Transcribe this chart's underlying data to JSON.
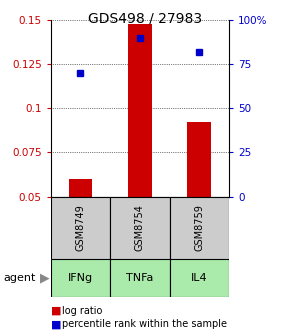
{
  "title": "GDS498 / 27983",
  "samples": [
    "GSM8749",
    "GSM8754",
    "GSM8759"
  ],
  "agents": [
    "IFNg",
    "TNFa",
    "IL4"
  ],
  "log_ratios": [
    0.06,
    0.148,
    0.092
  ],
  "percentile_ranks": [
    0.7,
    0.9,
    0.82
  ],
  "ylim_left": [
    0.05,
    0.15
  ],
  "ylim_right": [
    0.0,
    1.0
  ],
  "yticks_left": [
    0.05,
    0.075,
    0.1,
    0.125,
    0.15
  ],
  "ytick_labels_left": [
    "0.05",
    "0.075",
    "0.1",
    "0.125",
    "0.15"
  ],
  "yticks_right": [
    0.0,
    0.25,
    0.5,
    0.75,
    1.0
  ],
  "ytick_labels_right": [
    "0",
    "25",
    "50",
    "75",
    "100%"
  ],
  "bar_color": "#cc0000",
  "square_color": "#0000cc",
  "agent_bg_color": "#aaeaaa",
  "sample_bg_color": "#cccccc",
  "title_fontsize": 10,
  "tick_fontsize": 7.5,
  "label_fontsize": 8,
  "legend_fontsize": 7,
  "bar_width": 0.4,
  "x_positions": [
    1,
    2,
    3
  ]
}
